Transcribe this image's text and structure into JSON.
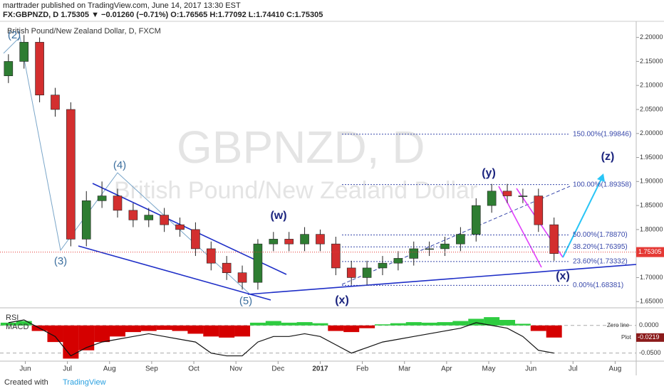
{
  "chart_data": {
    "type": "candlestick",
    "publisher": "marttrader published on TradingView.com, June 14, 2017 13:30 EST",
    "quote": "FX:GBPNZD, D 1.75305 ▼ −0.01260 (−0.71%) O:1.76565 H:1.77092 L:1.74410 C:1.75305",
    "title": "British Pound/New Zealand Dollar, D, FXCM",
    "watermark": "GBPNZD, D",
    "watermark_name": "British Pound/New Zealand Dollar",
    "up_color": "#2e7d32",
    "down_color": "#d32f2f",
    "x": [
      -0.4,
      -0.03,
      0.34,
      0.71,
      1.08,
      1.45,
      1.82,
      2.19,
      2.56,
      2.93,
      3.3,
      3.67,
      4.04,
      4.41,
      4.78,
      5.15,
      5.52,
      5.89,
      6.26,
      6.63,
      7.0,
      7.37,
      7.74,
      8.11,
      8.48,
      8.85,
      9.22,
      9.59,
      9.96,
      10.33,
      10.7,
      11.07,
      11.44,
      11.81,
      12.18,
      12.55
    ],
    "open": [
      2.12,
      2.15,
      2.19,
      2.08,
      2.05,
      1.78,
      1.86,
      1.87,
      1.84,
      1.82,
      1.83,
      1.81,
      1.8,
      1.76,
      1.73,
      1.71,
      1.69,
      1.77,
      1.78,
      1.77,
      1.79,
      1.77,
      1.72,
      1.7,
      1.72,
      1.73,
      1.74,
      1.76,
      1.76,
      1.77,
      1.79,
      1.85,
      1.88,
      1.87,
      1.87,
      1.81
    ],
    "high": [
      2.165,
      2.205,
      2.2,
      2.095,
      2.065,
      1.88,
      1.9,
      1.885,
      1.855,
      1.845,
      1.845,
      1.825,
      1.815,
      1.775,
      1.745,
      1.725,
      1.78,
      1.795,
      1.795,
      1.805,
      1.8,
      1.785,
      1.735,
      1.735,
      1.745,
      1.755,
      1.775,
      1.775,
      1.785,
      1.805,
      1.865,
      1.895,
      1.895,
      1.885,
      1.885,
      1.825
    ],
    "low": [
      2.105,
      2.135,
      2.065,
      2.035,
      1.765,
      1.765,
      1.845,
      1.825,
      1.805,
      1.805,
      1.795,
      1.785,
      1.745,
      1.715,
      1.695,
      1.675,
      1.675,
      1.755,
      1.755,
      1.755,
      1.755,
      1.705,
      1.685,
      1.685,
      1.705,
      1.715,
      1.725,
      1.745,
      1.745,
      1.755,
      1.775,
      1.835,
      1.855,
      1.855,
      1.795,
      1.735
    ],
    "close": [
      2.15,
      2.19,
      2.08,
      2.05,
      1.78,
      1.86,
      1.87,
      1.84,
      1.82,
      1.83,
      1.81,
      1.8,
      1.76,
      1.73,
      1.71,
      1.69,
      1.77,
      1.78,
      1.77,
      1.79,
      1.77,
      1.72,
      1.7,
      1.72,
      1.73,
      1.74,
      1.76,
      1.76,
      1.77,
      1.79,
      1.85,
      1.88,
      1.87,
      1.87,
      1.81,
      1.75
    ],
    "xlim": [
      -0.6,
      14.5
    ],
    "xticks": [
      {
        "value": 0,
        "label": "Jun"
      },
      {
        "value": 1,
        "label": "Jul"
      },
      {
        "value": 2,
        "label": "Aug"
      },
      {
        "value": 3,
        "label": "Sep"
      },
      {
        "value": 4,
        "label": "Oct"
      },
      {
        "value": 5,
        "label": "Nov"
      },
      {
        "value": 6,
        "label": "Dec"
      },
      {
        "value": 7,
        "label": "2017"
      },
      {
        "value": 8,
        "label": "Feb"
      },
      {
        "value": 9,
        "label": "Mar"
      },
      {
        "value": 10,
        "label": "Apr"
      },
      {
        "value": 11,
        "label": "May"
      },
      {
        "value": 12,
        "label": "Jun"
      },
      {
        "value": 13,
        "label": "Jul"
      },
      {
        "value": 14,
        "label": "Aug"
      }
    ],
    "ylim": [
      1.6385,
      2.2335
    ],
    "yticks": [
      {
        "value": 2.2,
        "label": "2.20000"
      },
      {
        "value": 2.15,
        "label": "2.15000"
      },
      {
        "value": 2.1,
        "label": "2.10000"
      },
      {
        "value": 2.05,
        "label": "2.05000"
      },
      {
        "value": 2.0,
        "label": "2.00000"
      },
      {
        "value": 1.95,
        "label": "1.95000"
      },
      {
        "value": 1.9,
        "label": "1.90000"
      },
      {
        "value": 1.85,
        "label": "1.85000"
      },
      {
        "value": 1.8,
        "label": "1.80000"
      },
      {
        "value": 1.75,
        "label": "1.75000"
      },
      {
        "value": 1.7,
        "label": "1.70000"
      },
      {
        "value": 1.65,
        "label": "1.65000"
      }
    ],
    "last_price": 1.75305,
    "fib_levels": [
      {
        "value": 1.99846,
        "label": "150.00%(1.99846)"
      },
      {
        "value": 1.89358,
        "label": "100.00%(1.89358)"
      },
      {
        "value": 1.7887,
        "label": "50.00%(1.78870)"
      },
      {
        "value": 1.76395,
        "label": "38.20%(1.76395)"
      },
      {
        "value": 1.73332,
        "label": "23.60%(1.73332)"
      },
      {
        "value": 1.68381,
        "label": "0.00%(1.68381)"
      }
    ],
    "waves": [
      "(2)",
      "(3)",
      "(4)",
      "(5)",
      "(w)",
      "(x)",
      "(y)",
      "(x)",
      "(z)"
    ],
    "indicator": {
      "rsi_label": "RSI",
      "macd_label": "MACD",
      "ylim": [
        -0.062,
        0.028
      ],
      "yticks": [
        {
          "value": 0,
          "label": "0.0000"
        },
        {
          "value": -0.05,
          "label": "-0.0500"
        }
      ],
      "zero_label": "Zero line",
      "plot_label": "Plot",
      "plot_value": {
        "value": -0.0219,
        "label": "-0.0219"
      },
      "hist": [
        0.005,
        0.008,
        -0.01,
        -0.03,
        -0.06,
        -0.045,
        -0.03,
        -0.02,
        -0.012,
        -0.01,
        -0.008,
        -0.01,
        -0.015,
        -0.02,
        -0.022,
        -0.02,
        0.005,
        0.008,
        0.005,
        0.006,
        0.004,
        -0.01,
        -0.012,
        -0.005,
        0.002,
        0.004,
        0.006,
        0.005,
        0.006,
        0.008,
        0.012,
        0.015,
        0.01,
        0.003,
        -0.01,
        -0.0219
      ],
      "macd": [
        0.005,
        0.01,
        -0.005,
        -0.02,
        -0.055,
        -0.04,
        -0.03,
        -0.025,
        -0.02,
        -0.015,
        -0.02,
        -0.025,
        -0.03,
        -0.05,
        -0.055,
        -0.055,
        -0.03,
        -0.02,
        -0.02,
        -0.015,
        -0.02,
        -0.035,
        -0.05,
        -0.04,
        -0.03,
        -0.025,
        -0.02,
        -0.015,
        -0.01,
        -0.005,
        0.005,
        0.0,
        -0.005,
        -0.02,
        -0.045,
        -0.05
      ]
    },
    "footer": {
      "created": "Created with",
      "brand": "TradingView"
    }
  }
}
